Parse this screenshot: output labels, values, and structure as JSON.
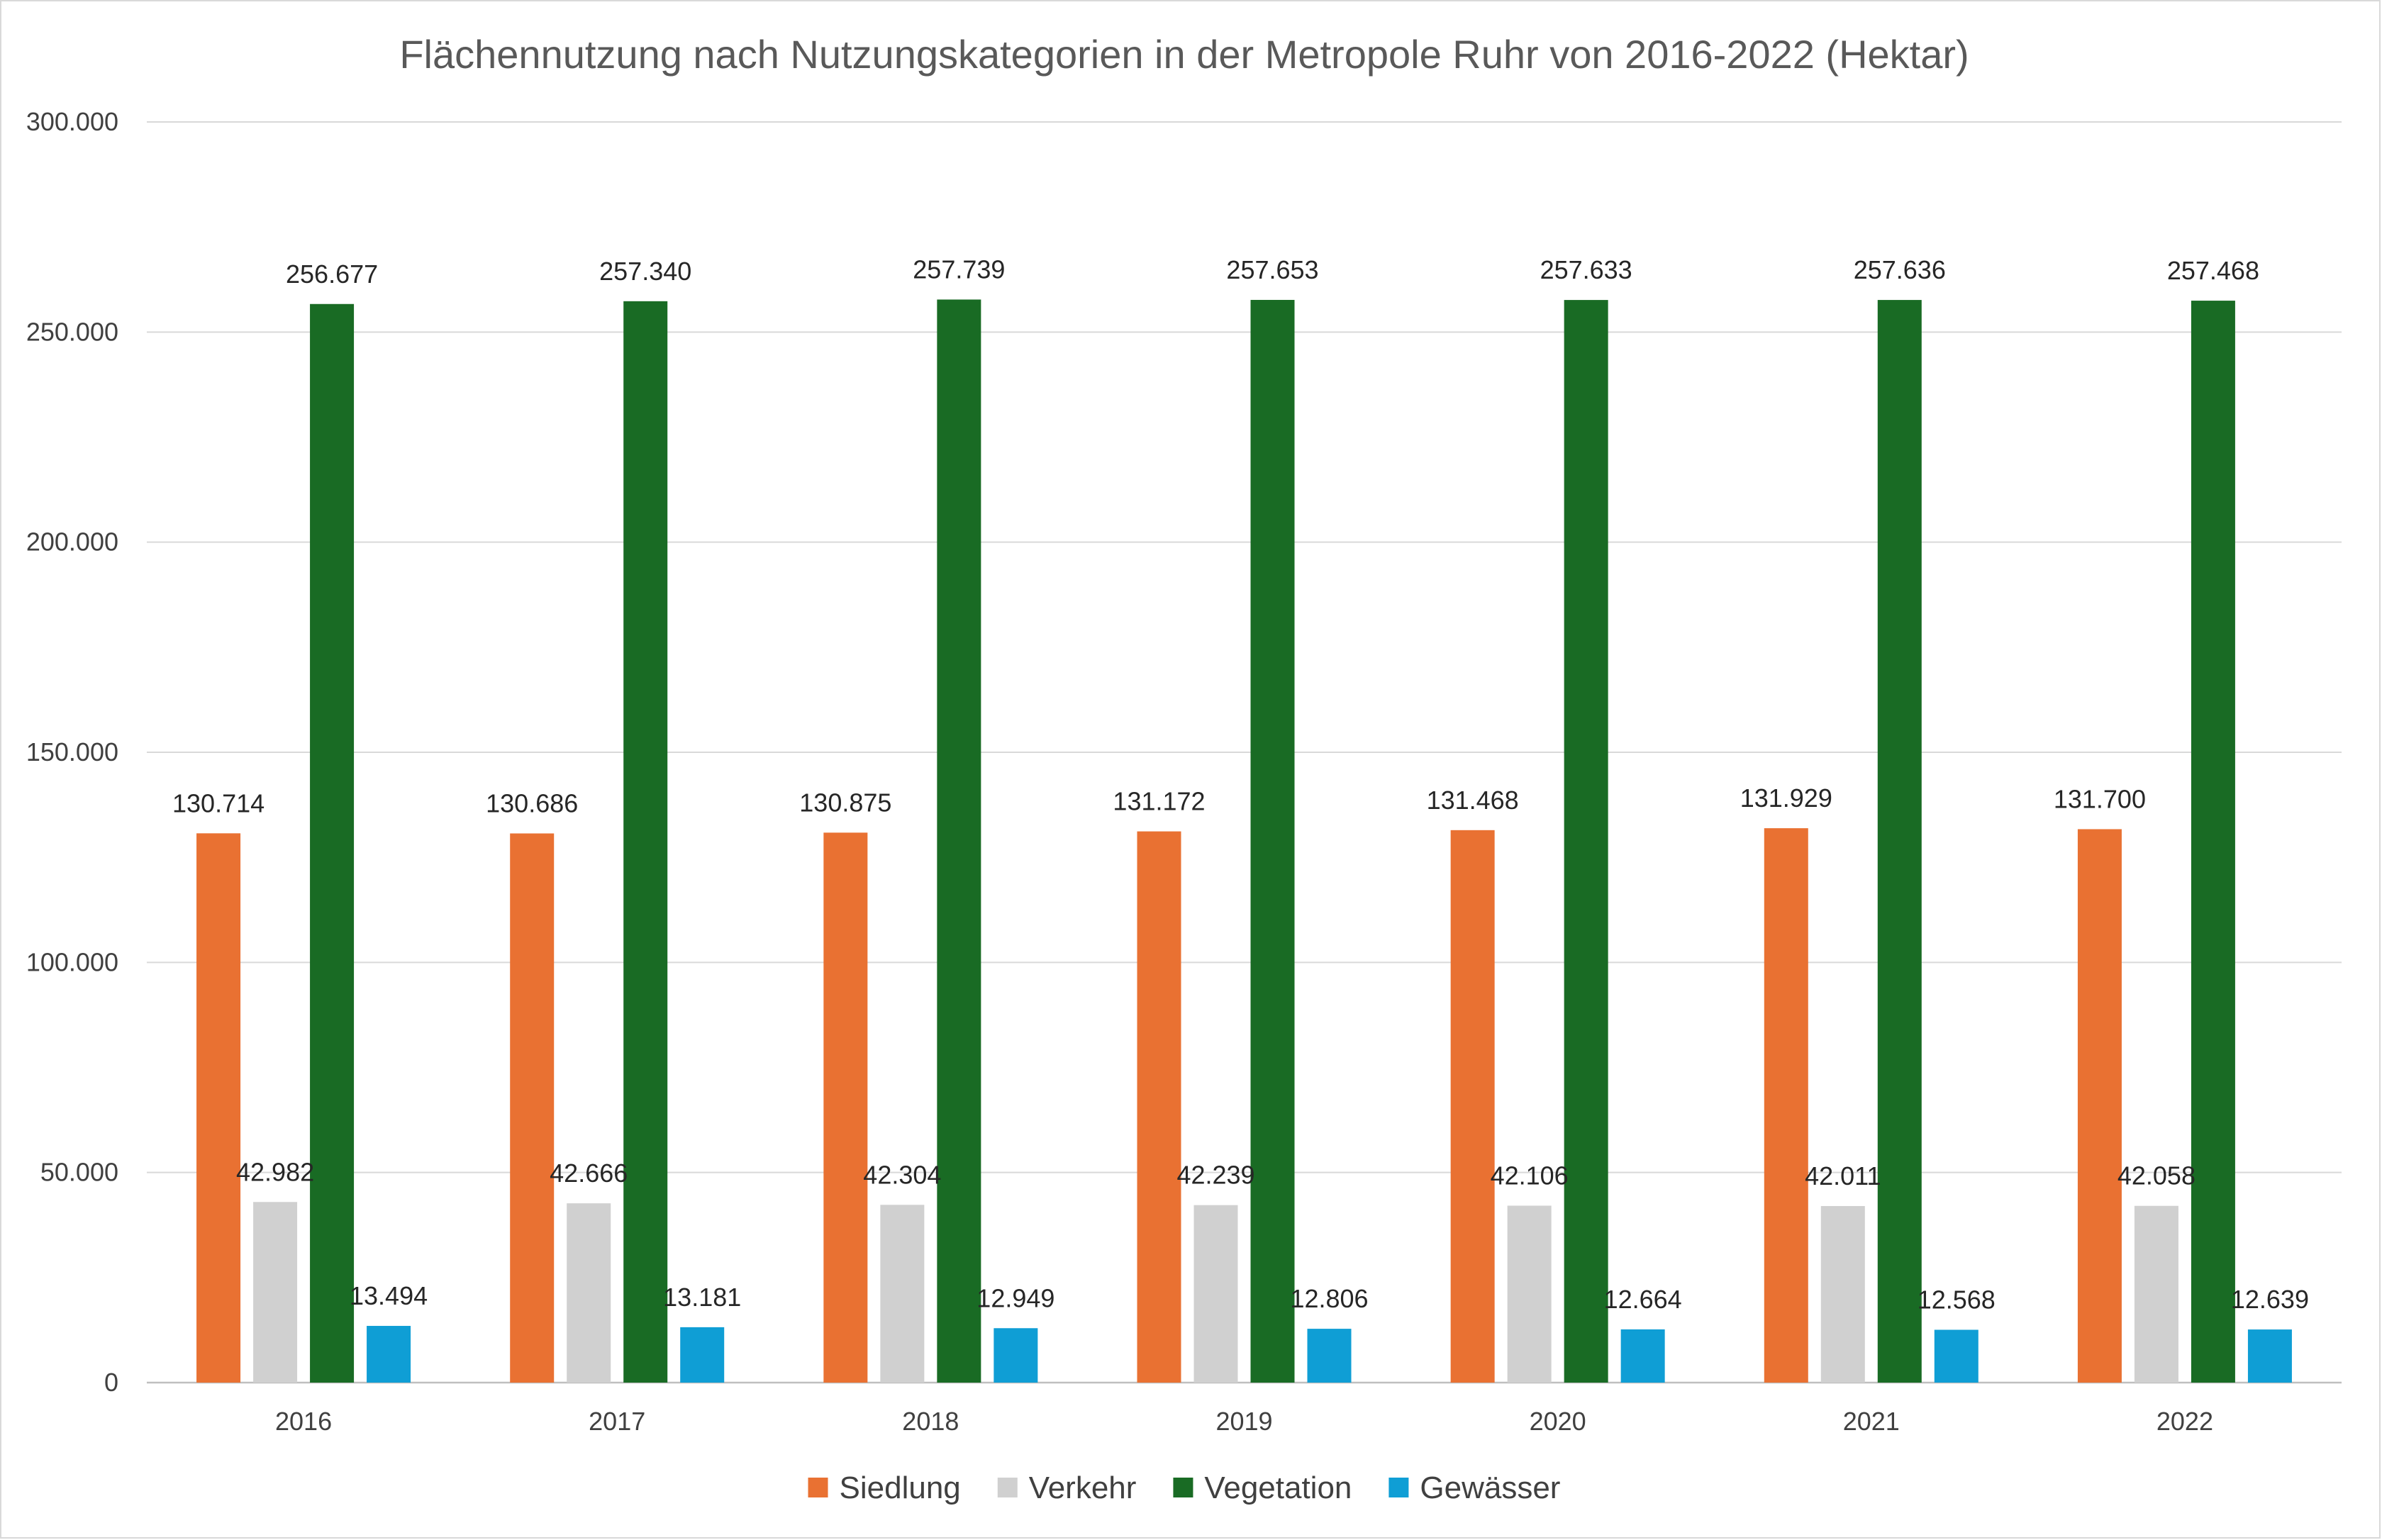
{
  "chart_data": {
    "type": "bar",
    "title": "Flächennutzung nach Nutzungskategorien in der Metropole Ruhr von 2016-2022 (Hektar)",
    "xlabel": "",
    "ylabel": "",
    "ylim": [
      0,
      300000
    ],
    "y_ticks": [
      0,
      50000,
      100000,
      150000,
      200000,
      250000,
      300000
    ],
    "y_tick_labels": [
      "0",
      "50.000",
      "100.000",
      "150.000",
      "200.000",
      "250.000",
      "300.000"
    ],
    "grid": true,
    "legend_position": "bottom",
    "categories": [
      "2016",
      "2017",
      "2018",
      "2019",
      "2020",
      "2021",
      "2022"
    ],
    "series": [
      {
        "name": "Siedlung",
        "color": "#E97132",
        "values": [
          130714,
          130686,
          130875,
          131172,
          131468,
          131929,
          131700
        ],
        "labels": [
          "130.714",
          "130.686",
          "130.875",
          "131.172",
          "131.468",
          "131.929",
          "131.700"
        ]
      },
      {
        "name": "Verkehr",
        "color": "#D0D0D0",
        "values": [
          42982,
          42666,
          42304,
          42239,
          42106,
          42011,
          42058
        ],
        "labels": [
          "42.982",
          "42.666",
          "42.304",
          "42.239",
          "42.106",
          "42.011",
          "42.058"
        ]
      },
      {
        "name": "Vegetation",
        "color": "#196B24",
        "values": [
          256677,
          257340,
          257739,
          257653,
          257633,
          257636,
          257468
        ],
        "labels": [
          "256.677",
          "257.340",
          "257.739",
          "257.653",
          "257.633",
          "257.636",
          "257.468"
        ]
      },
      {
        "name": "Gewässer",
        "color": "#0F9ED5",
        "values": [
          13494,
          13181,
          12949,
          12806,
          12664,
          12568,
          12639
        ],
        "labels": [
          "13.494",
          "13.181",
          "12.949",
          "12.806",
          "12.664",
          "12.568",
          "12.639"
        ]
      }
    ],
    "gridline_color": "#d9d9d9",
    "axis_color": "#bfbfbf"
  }
}
